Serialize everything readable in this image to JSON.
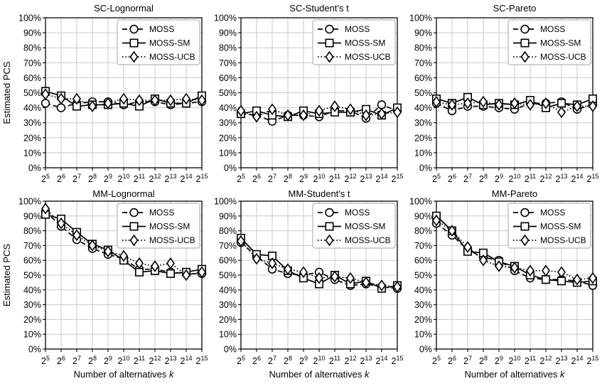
{
  "figure": {
    "ylabel": "Estimated PCS",
    "xlabel_text": "Number of alternatives ",
    "xlabel_italic": "k",
    "x_tick_base": "2",
    "x_tick_exponents": [
      5,
      6,
      7,
      8,
      9,
      10,
      11,
      12,
      13,
      14,
      15
    ],
    "ytick_percent": [
      0,
      10,
      20,
      30,
      40,
      50,
      60,
      70,
      80,
      90,
      100
    ],
    "legend_labels": [
      "MOSS",
      "MOSS-SM",
      "MOSS-UCB"
    ],
    "colors": {
      "line": "#000000",
      "marker_fill": "#ffffff",
      "grid": "#c9c9c9",
      "legend_border": "#b3b3b3",
      "background": "#ffffff"
    }
  },
  "chart_data": [
    {
      "type": "line",
      "title": "SC-Lognormal",
      "ylabel": "Estimated PCS",
      "ylim": [
        0,
        100
      ],
      "grid": true,
      "legend_position": "top-right",
      "series": [
        {
          "name": "MOSS",
          "marker": "circle",
          "line_style": "dashed",
          "values": [
            43,
            40,
            43,
            44,
            44,
            42,
            44,
            44,
            42,
            43,
            44
          ]
        },
        {
          "name": "MOSS-SM",
          "marker": "square",
          "line_style": "solid",
          "values": [
            51,
            48,
            41,
            42,
            42,
            43,
            41,
            46,
            43,
            43,
            48
          ]
        },
        {
          "name": "MOSS-UCB",
          "marker": "diamond",
          "line_style": "dotted",
          "values": [
            49,
            46,
            46,
            41,
            43,
            46,
            45,
            45,
            45,
            46,
            45
          ]
        }
      ]
    },
    {
      "type": "line",
      "title": "SC-Student's t",
      "ylim": [
        0,
        100
      ],
      "grid": true,
      "legend_position": "top-right",
      "series": [
        {
          "name": "MOSS",
          "marker": "circle",
          "line_style": "dashed",
          "values": [
            36,
            35,
            31,
            35,
            35,
            34,
            38,
            38,
            33,
            42,
            38
          ]
        },
        {
          "name": "MOSS-SM",
          "marker": "square",
          "line_style": "solid",
          "values": [
            36,
            38,
            35,
            34,
            38,
            36,
            37,
            37,
            39,
            35,
            40
          ]
        },
        {
          "name": "MOSS-UCB",
          "marker": "diamond",
          "line_style": "dotted",
          "values": [
            38,
            34,
            39,
            35,
            35,
            38,
            41,
            39,
            35,
            36,
            37
          ]
        }
      ]
    },
    {
      "type": "line",
      "title": "SC-Pareto",
      "ylim": [
        0,
        100
      ],
      "grid": true,
      "legend_position": "top-right",
      "series": [
        {
          "name": "MOSS",
          "marker": "circle",
          "line_style": "dashed",
          "values": [
            43,
            38,
            41,
            41,
            40,
            39,
            43,
            43,
            44,
            39,
            42
          ]
        },
        {
          "name": "MOSS-SM",
          "marker": "square",
          "line_style": "solid",
          "values": [
            46,
            43,
            47,
            42,
            43,
            42,
            45,
            40,
            43,
            42,
            46
          ]
        },
        {
          "name": "MOSS-UCB",
          "marker": "diamond",
          "line_style": "dotted",
          "values": [
            44,
            42,
            43,
            44,
            42,
            43,
            42,
            43,
            37,
            41,
            41
          ]
        }
      ]
    },
    {
      "type": "line",
      "title": "MM-Lognormal",
      "ylabel": "Estimated PCS",
      "xlabel": "Number of alternatives ",
      "xlabel_italic": "k",
      "ylim": [
        0,
        100
      ],
      "grid": true,
      "legend_position": "top-right",
      "series": [
        {
          "name": "MOSS",
          "marker": "circle",
          "line_style": "dashed",
          "values": [
            93,
            83,
            74,
            68,
            64,
            61,
            54,
            54,
            52,
            51,
            51
          ]
        },
        {
          "name": "MOSS-SM",
          "marker": "square",
          "line_style": "solid",
          "values": [
            91,
            88,
            79,
            71,
            67,
            60,
            52,
            53,
            51,
            52,
            54
          ]
        },
        {
          "name": "MOSS-UCB",
          "marker": "diamond",
          "line_style": "dotted",
          "values": [
            95,
            85,
            77,
            70,
            66,
            63,
            58,
            56,
            58,
            50,
            52
          ]
        }
      ]
    },
    {
      "type": "line",
      "title": "MM-Student's t",
      "xlabel": "Number of alternatives ",
      "xlabel_italic": "k",
      "ylim": [
        0,
        100
      ],
      "grid": true,
      "legend_position": "top-right",
      "series": [
        {
          "name": "MOSS",
          "marker": "circle",
          "line_style": "dashed",
          "values": [
            72,
            63,
            54,
            51,
            50,
            52,
            47,
            43,
            44,
            42,
            41
          ]
        },
        {
          "name": "MOSS-SM",
          "marker": "square",
          "line_style": "solid",
          "values": [
            75,
            64,
            63,
            53,
            48,
            44,
            50,
            44,
            46,
            41,
            43
          ]
        },
        {
          "name": "MOSS-UCB",
          "marker": "diamond",
          "line_style": "dotted",
          "values": [
            73,
            61,
            58,
            54,
            52,
            48,
            49,
            48,
            45,
            43,
            42
          ]
        }
      ]
    },
    {
      "type": "line",
      "title": "MM-Pareto",
      "xlabel": "Number of alternatives ",
      "xlabel_italic": "k",
      "ylim": [
        0,
        100
      ],
      "grid": true,
      "legend_position": "top-right",
      "series": [
        {
          "name": "MOSS",
          "marker": "circle",
          "line_style": "dashed",
          "values": [
            85,
            77,
            67,
            62,
            60,
            53,
            48,
            47,
            47,
            46,
            43
          ]
        },
        {
          "name": "MOSS-SM",
          "marker": "square",
          "line_style": "solid",
          "values": [
            90,
            80,
            66,
            65,
            59,
            56,
            50,
            47,
            46,
            45,
            46
          ]
        },
        {
          "name": "MOSS-UCB",
          "marker": "diamond",
          "line_style": "dotted",
          "values": [
            87,
            80,
            69,
            60,
            56,
            55,
            53,
            53,
            52,
            47,
            48
          ]
        }
      ]
    }
  ]
}
